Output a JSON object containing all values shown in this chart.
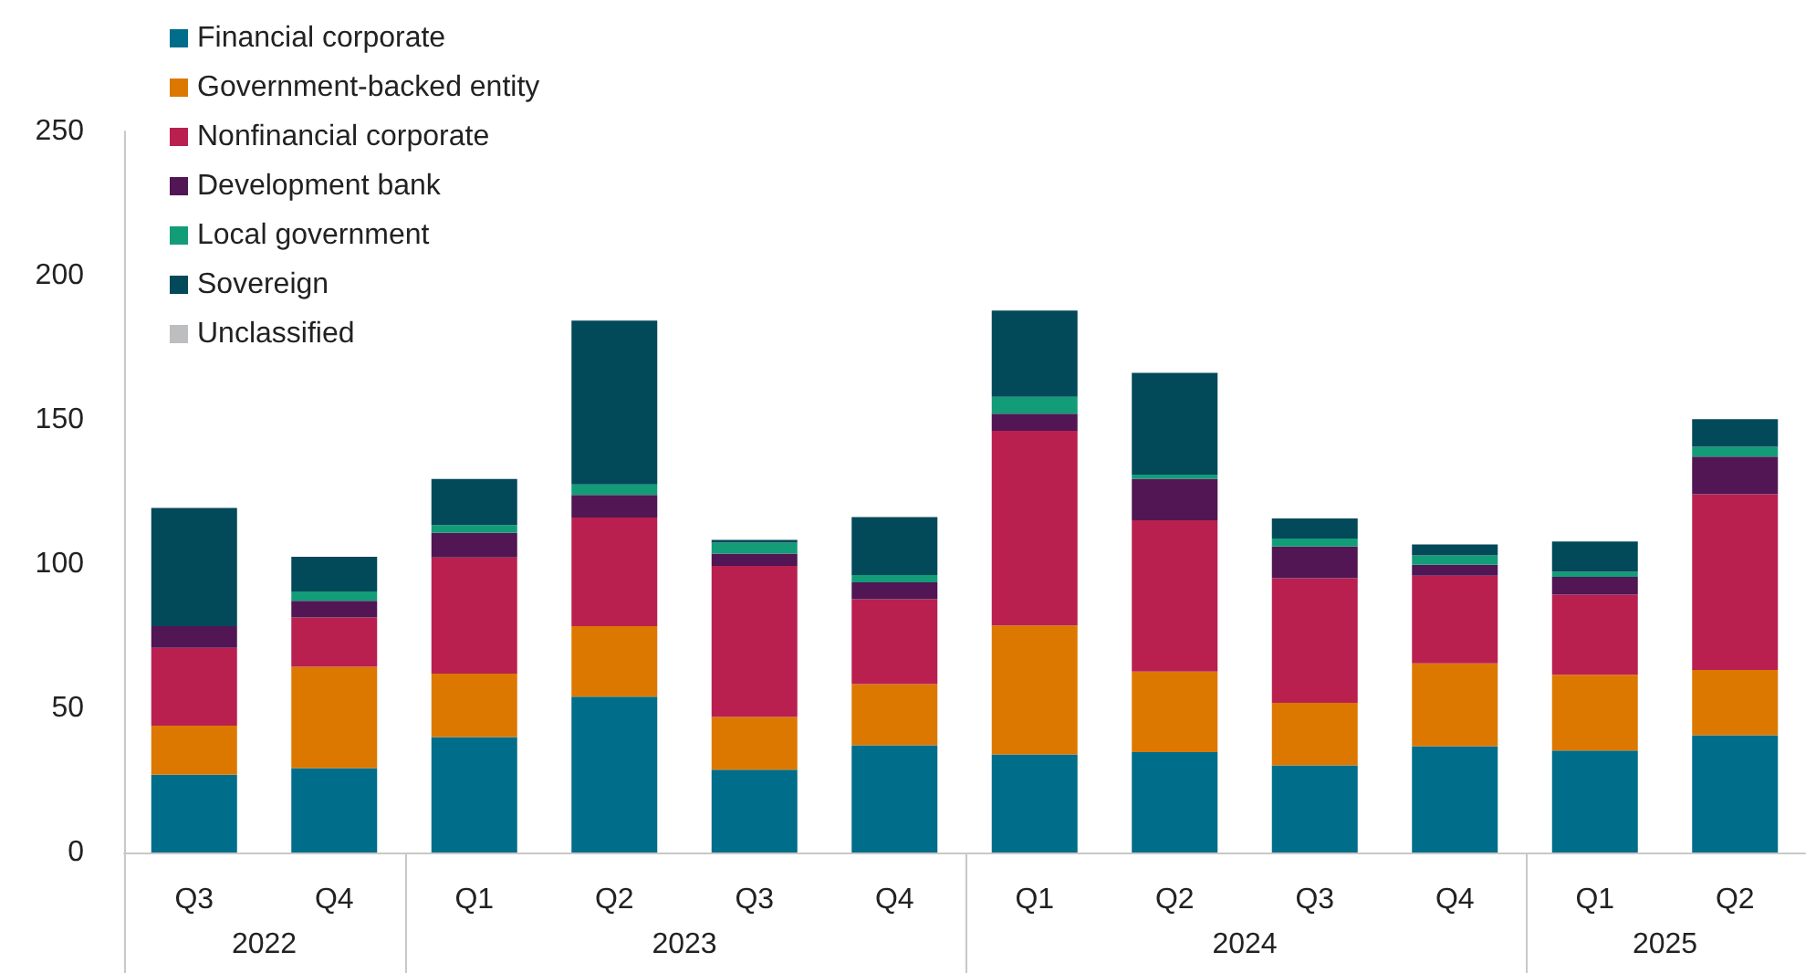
{
  "chart_data": {
    "type": "bar",
    "stacked": true,
    "categories": [
      "Q3",
      "Q4",
      "Q1",
      "Q2",
      "Q3",
      "Q4",
      "Q1",
      "Q2",
      "Q3",
      "Q4",
      "Q1",
      "Q2"
    ],
    "series": [
      {
        "name": "Financial corporate",
        "color": "#006d8a",
        "values": [
          27,
          29.3,
          40,
          54,
          28.7,
          37.2,
          34,
          34.8,
          30.2,
          36.9,
          35.4,
          40.7
        ]
      },
      {
        "name": "Government-backed entity",
        "color": "#dc7800",
        "values": [
          17,
          35.1,
          22,
          24.5,
          18.3,
          21.2,
          44.7,
          27.9,
          21.7,
          28.7,
          26.2,
          22.6
        ]
      },
      {
        "name": "Nonfinancial corporate",
        "color": "#b9204f",
        "values": [
          27,
          17.1,
          40.3,
          37.6,
          52.4,
          29.4,
          67.5,
          52.5,
          43.2,
          30.4,
          27.8,
          60.9
        ]
      },
      {
        "name": "Development bank",
        "color": "#511653",
        "values": [
          7.5,
          5.8,
          8.5,
          7.9,
          4.2,
          5.9,
          5.9,
          14.4,
          11,
          3.8,
          6.2,
          13.1
        ]
      },
      {
        "name": "Local government",
        "color": "#129c78",
        "values": [
          0,
          3.2,
          2.7,
          3.6,
          3.8,
          2.5,
          5.9,
          1.4,
          2.8,
          3.2,
          1.7,
          3.4
        ]
      },
      {
        "name": "Sovereign",
        "color": "#02495a",
        "values": [
          41,
          12,
          16,
          56.8,
          1,
          20.1,
          29.9,
          35.3,
          6.9,
          3.8,
          10.5,
          9.5
        ]
      },
      {
        "name": "Unclassified",
        "color": "#bdbec0",
        "values": [
          0,
          0,
          0,
          0,
          0,
          0,
          0,
          0,
          0,
          0,
          0,
          0
        ]
      }
    ],
    "ylim": [
      0,
      250
    ],
    "yticks": [
      0,
      50,
      100,
      150,
      200,
      250
    ],
    "grid": false,
    "legend": "top left",
    "annotations": [
      "2022",
      "2023",
      "2024",
      "2025"
    ]
  }
}
